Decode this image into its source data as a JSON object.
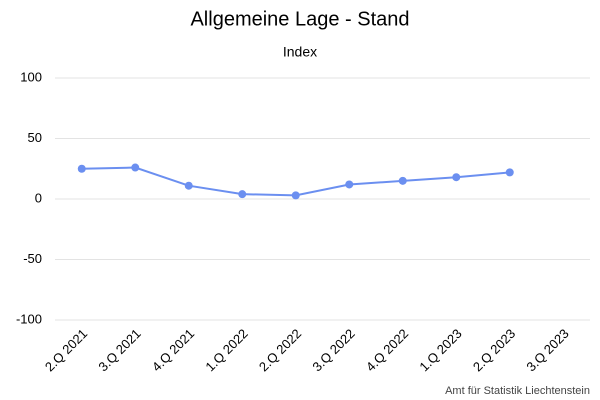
{
  "chart_data": {
    "type": "line",
    "title": "Allgemeine Lage - Stand",
    "subtitle": "Index",
    "credit": "Amt für Statistik Liechtenstein",
    "categories": [
      "2.Q 2021",
      "3.Q 2021",
      "4.Q 2021",
      "1.Q 2022",
      "2.Q 2022",
      "3.Q 2022",
      "4.Q 2022",
      "1.Q 2023",
      "2.Q 2023",
      "3.Q 2023"
    ],
    "values": [
      25,
      26,
      11,
      4,
      3,
      12,
      15,
      18,
      22,
      null
    ],
    "color": "#6b8ff0",
    "ylim": [
      -100,
      100
    ],
    "yticks": [
      -100,
      -50,
      0,
      50,
      100
    ],
    "grid": true
  }
}
